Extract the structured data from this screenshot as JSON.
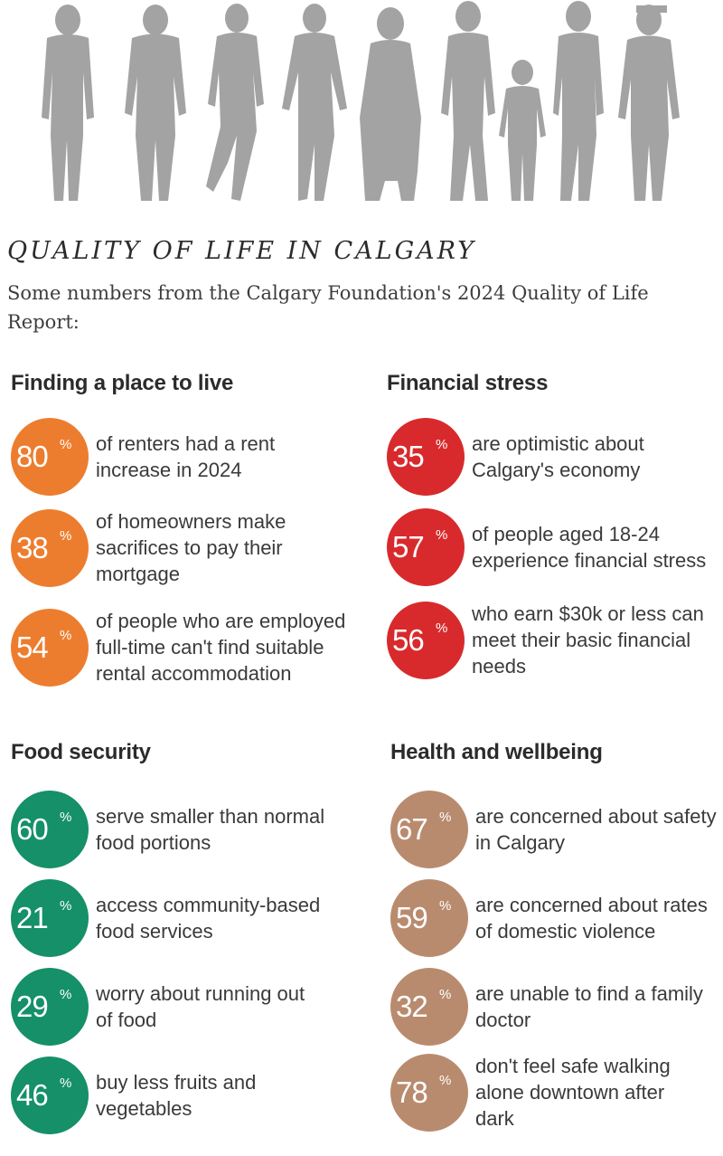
{
  "header": {
    "title": "QUALITY OF LIFE IN CALGARY",
    "subtitle": "Some numbers from the Calgary Foundation's 2024 Quality of Life Report:"
  },
  "colors": {
    "orange": "#ed7d2e",
    "red": "#d82a2c",
    "green": "#159068",
    "tan": "#b98b6e",
    "silhouette": "#a3a3a3"
  },
  "sections": {
    "housing": {
      "title": "Finding a place to live",
      "items": [
        {
          "value": "80",
          "unit": "%",
          "text": "of renters had a rent\nincrease in 2024"
        },
        {
          "value": "38",
          "unit": "%",
          "text": "of homeowners make\nsacrifices to pay their\nmortgage"
        },
        {
          "value": "54",
          "unit": "%",
          "text": "of people who are employed\nfull-time can't find suitable\nrental accommodation"
        }
      ]
    },
    "financial": {
      "title": "Financial stress",
      "items": [
        {
          "value": "35",
          "unit": "%",
          "text": "are optimistic about\nCalgary's economy"
        },
        {
          "value": "57",
          "unit": "%",
          "text": "of people aged 18-24\nexperience financial stress"
        },
        {
          "value": "56",
          "unit": "%",
          "text": "who earn $30k or less can\nmeet their basic financial\nneeds"
        }
      ]
    },
    "food": {
      "title": "Food security",
      "items": [
        {
          "value": "60",
          "unit": "%",
          "text": "serve smaller than normal\nfood portions"
        },
        {
          "value": "21",
          "unit": "%",
          "text": "access community-based\nfood services"
        },
        {
          "value": "29",
          "unit": "%",
          "text": "worry about running out\nof food"
        },
        {
          "value": "46",
          "unit": "%",
          "text": "buy less fruits and\nvegetables"
        }
      ]
    },
    "health": {
      "title": "Health and wellbeing",
      "items": [
        {
          "value": "67",
          "unit": "%",
          "text": "are concerned about safety\nin Calgary"
        },
        {
          "value": "59",
          "unit": "%",
          "text": "are concerned about rates\nof domestic violence"
        },
        {
          "value": "32",
          "unit": "%",
          "text": "are unable to find a family\ndoctor"
        },
        {
          "value": "78",
          "unit": "%",
          "text": "don't feel safe walking\nalone downtown after\ndark"
        }
      ]
    }
  }
}
